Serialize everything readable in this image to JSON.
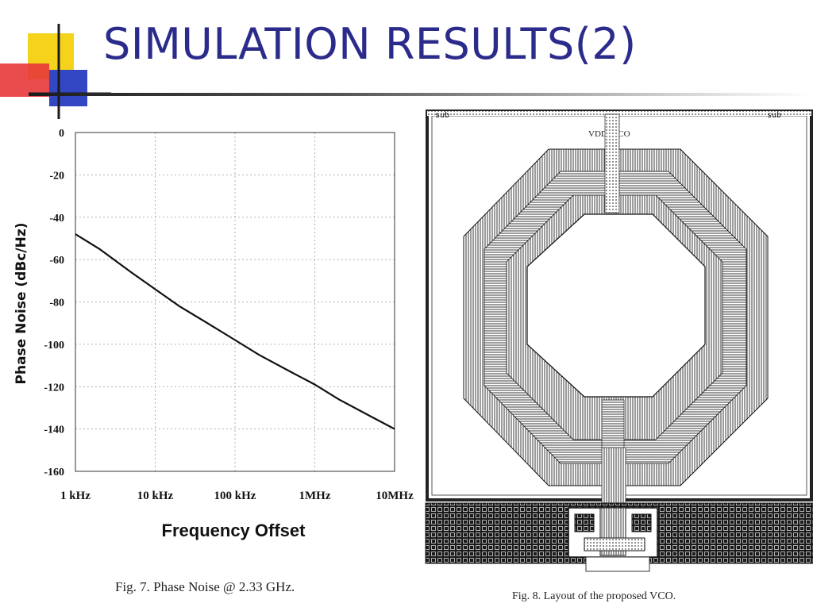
{
  "slide": {
    "title": "SIMULATION RESULTS(2)",
    "accent_colors": {
      "title": "#2b2b8c",
      "logo_yellow": "#f5d31a",
      "logo_red": "#e8393a",
      "logo_blue": "#3347c4"
    }
  },
  "chart_data": {
    "type": "line",
    "xlabel": "Frequency Offset",
    "ylabel": "Phase Noise (dBc/Hz)",
    "x_scale": "log",
    "x_ticks": [
      "1 kHz",
      "10 kHz",
      "100 kHz",
      "1MHz",
      "10MHz"
    ],
    "y_ticks": [
      "0",
      "-20",
      "-40",
      "-60",
      "-80",
      "-100",
      "-120",
      "-140",
      "-160"
    ],
    "ylim": [
      -160,
      0
    ],
    "xlim_hz": [
      1000,
      10000000
    ],
    "grid": true,
    "series": [
      {
        "x_hz": [
          1000,
          2000,
          5000,
          10000,
          20000,
          50000,
          100000,
          200000,
          500000,
          1000000,
          2000000,
          5000000,
          10000000
        ],
        "values": [
          -48,
          -55,
          -66,
          -74,
          -82,
          -91,
          -98,
          -105,
          -113,
          -119,
          -126,
          -134,
          -140
        ]
      }
    ],
    "caption": "Fig. 7.   Phase Noise @ 2.33 GHz."
  },
  "layout_figure": {
    "labels": {
      "top_left": "sub",
      "top_right": "sub",
      "supply": "VDD_VCO"
    },
    "caption": "Fig. 8.   Layout of the proposed VCO."
  }
}
